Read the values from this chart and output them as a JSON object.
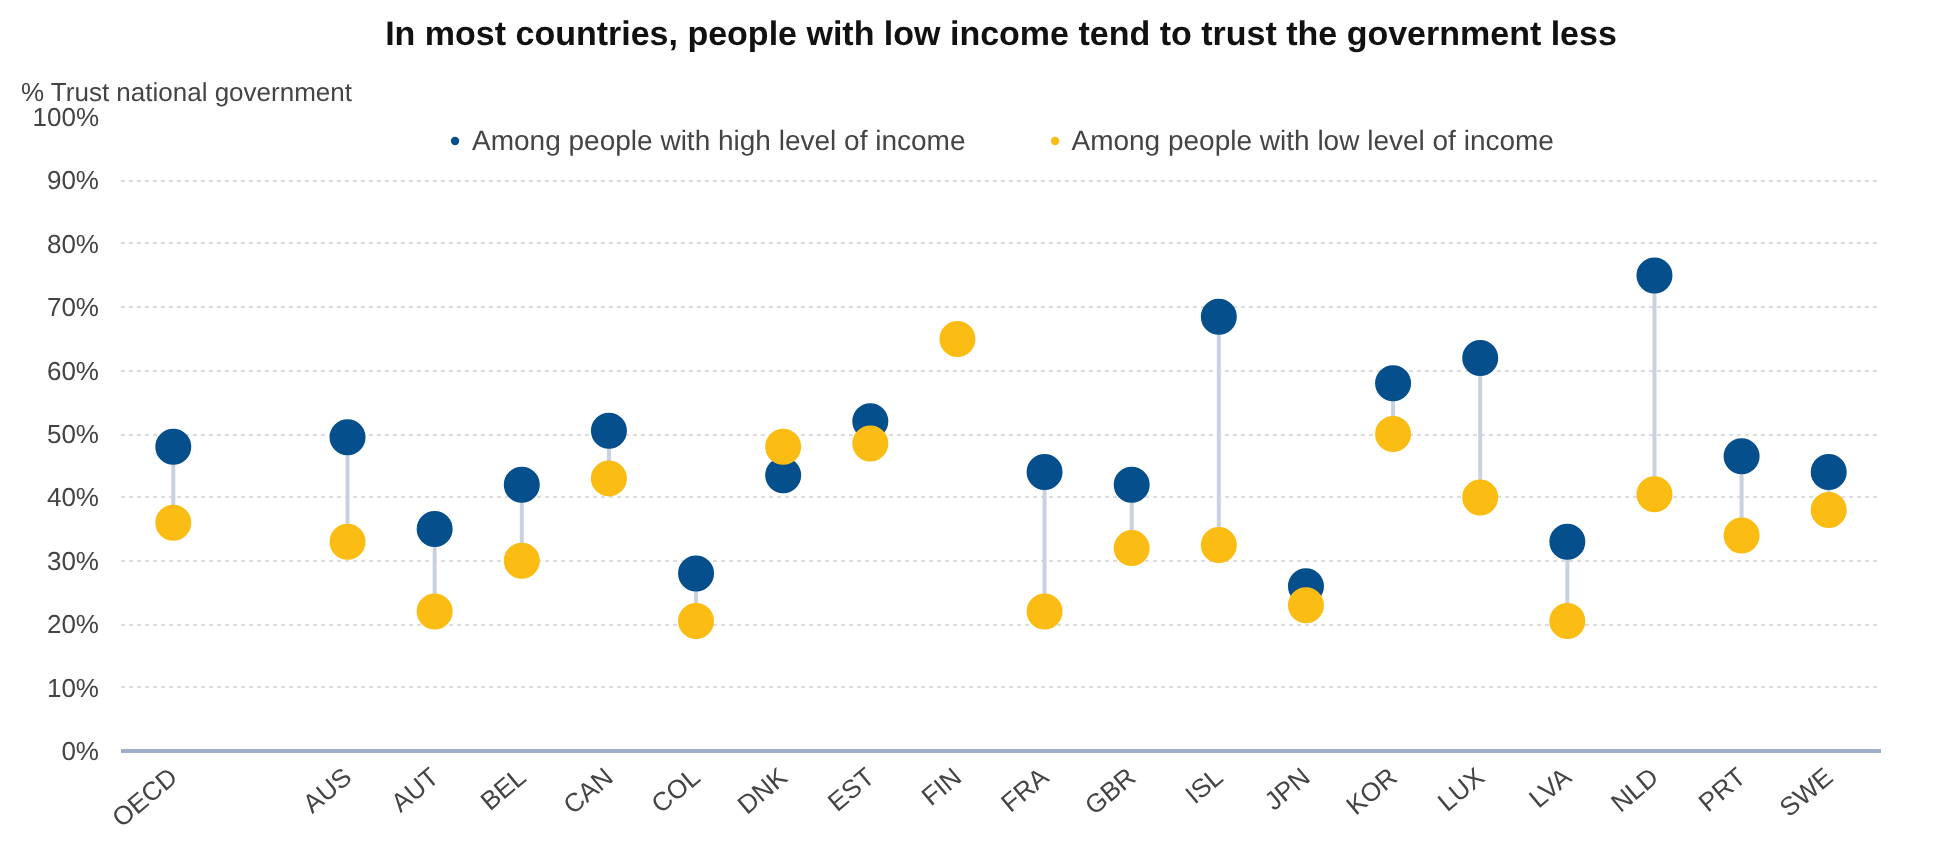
{
  "chart_data": {
    "type": "scatter",
    "title": "In most countries, people with low income tend to trust the government less",
    "ylabel": "% Trust national government",
    "categories": [
      "OECD",
      null,
      "AUS",
      "AUT",
      "BEL",
      "CAN",
      "COL",
      "DNK",
      "EST",
      "FIN",
      "FRA",
      "GBR",
      "ISL",
      "JPN",
      "KOR",
      "LUX",
      "LVA",
      "NLD",
      "PRT",
      "SWE"
    ],
    "series": [
      {
        "name": "Among people with high level of income",
        "color": "#044f8c",
        "values": [
          48,
          null,
          49.5,
          35,
          42,
          50.5,
          28,
          43.5,
          52,
          null,
          44,
          42,
          68.5,
          26,
          58,
          62,
          33,
          75,
          46.5,
          44
        ]
      },
      {
        "name": "Among people with low level of income",
        "color": "#fbbc13",
        "values": [
          36,
          null,
          33,
          22,
          30,
          43,
          20.5,
          48,
          48.5,
          65,
          22,
          32,
          32.5,
          23,
          50,
          40,
          20.5,
          40.5,
          34,
          38
        ]
      }
    ],
    "ylim": [
      0,
      100
    ],
    "yticks": [
      {
        "value": 0,
        "label": "0%"
      },
      {
        "value": 10,
        "label": "10%"
      },
      {
        "value": 20,
        "label": "20%"
      },
      {
        "value": 30,
        "label": "30%"
      },
      {
        "value": 40,
        "label": "40%"
      },
      {
        "value": 50,
        "label": "50%"
      },
      {
        "value": 60,
        "label": "60%"
      },
      {
        "value": 70,
        "label": "70%"
      },
      {
        "value": 80,
        "label": "80%"
      },
      {
        "value": 90,
        "label": "90%"
      },
      {
        "value": 100,
        "label": "100%"
      }
    ],
    "grid": "y",
    "legend": "top",
    "marker": "circle"
  }
}
